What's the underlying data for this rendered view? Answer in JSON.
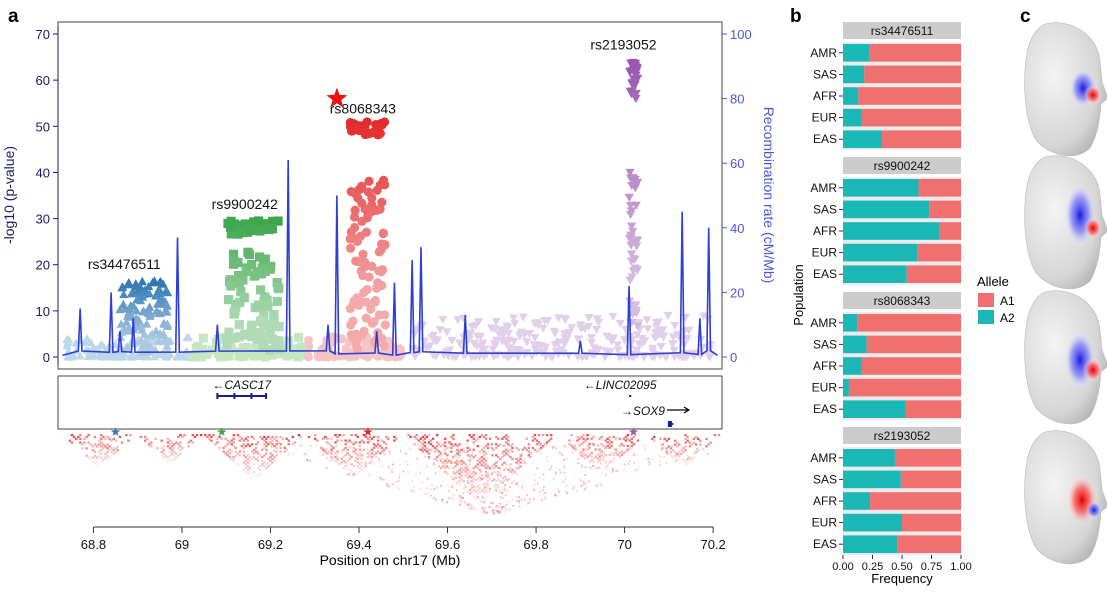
{
  "panels": {
    "a": "a",
    "b": "b",
    "c": "c"
  },
  "colors": {
    "axis": "#1a1a66",
    "recomb": "#2d3fd6",
    "recomb_axis": "#4a55e0",
    "a1": "#f07070",
    "a2": "#1bb6b6",
    "strip": "#cccccc",
    "ld": "#e83030",
    "star": "#ee1111"
  },
  "chart_data": [
    {
      "type": "scatter",
      "title": "",
      "ylabel": "-log10 (p-value)",
      "y2label": "Recombination rate (cM/Mb)",
      "xlabel": "Position on chr17 (Mb)",
      "xlim": [
        68.72,
        70.22
      ],
      "ylim": [
        0,
        70
      ],
      "y2lim": [
        0,
        100
      ],
      "xticks": [
        "68.8",
        "69",
        "69.2",
        "69.4",
        "69.6",
        "69.8",
        "70",
        "70.2"
      ],
      "yticks": [
        "0",
        "10",
        "20",
        "30",
        "40",
        "50",
        "60",
        "70"
      ],
      "y2ticks": [
        "0",
        "20",
        "40",
        "60",
        "80",
        "100"
      ],
      "series": [
        {
          "name": "rs34476511",
          "color": "#2f78b4",
          "marker": "triangle",
          "xrange": [
            68.86,
            68.97
          ],
          "peak": 16.5,
          "lead": {
            "x": 68.88,
            "y": 17.2
          }
        },
        {
          "name": "rs9900242",
          "color": "#3ca64a",
          "marker": "square",
          "xrange": [
            69.1,
            69.22
          ],
          "peak": 29.5,
          "lead": {
            "x": 69.13,
            "y": 30.2
          }
        },
        {
          "name": "rs8068343",
          "color": "#e32b2b",
          "marker": "circle",
          "xrange": [
            69.38,
            69.46
          ],
          "peak": 51.0,
          "lead": {
            "x": 69.35,
            "y": 56.0
          }
        },
        {
          "name": "rs2193052",
          "color": "#9a56b0",
          "marker": "triangle-down",
          "xrange": [
            70.01,
            70.03
          ],
          "peak": 64.0,
          "lead": {
            "x": 70.02,
            "y": 64.0
          }
        }
      ],
      "recombination_peaks": [
        {
          "x": 68.77,
          "y": 15
        },
        {
          "x": 68.84,
          "y": 20
        },
        {
          "x": 68.86,
          "y": 8
        },
        {
          "x": 68.89,
          "y": 12
        },
        {
          "x": 68.99,
          "y": 37
        },
        {
          "x": 69.08,
          "y": 10
        },
        {
          "x": 69.24,
          "y": 61
        },
        {
          "x": 69.33,
          "y": 10
        },
        {
          "x": 69.35,
          "y": 50
        },
        {
          "x": 69.44,
          "y": 8
        },
        {
          "x": 69.48,
          "y": 23
        },
        {
          "x": 69.52,
          "y": 30
        },
        {
          "x": 69.54,
          "y": 34
        },
        {
          "x": 69.64,
          "y": 13
        },
        {
          "x": 69.9,
          "y": 5
        },
        {
          "x": 70.01,
          "y": 22
        },
        {
          "x": 70.13,
          "y": 45
        },
        {
          "x": 70.17,
          "y": 12
        },
        {
          "x": 70.19,
          "y": 40
        }
      ],
      "genes": [
        {
          "name": "CASC17",
          "arrow": "←",
          "start": 69.08,
          "end": 69.19,
          "dir": "left",
          "row": 1
        },
        {
          "name": "LINC02095",
          "arrow": "←",
          "start": 70.01,
          "end": 70.015,
          "dir": "left",
          "row": 1
        },
        {
          "name": "SOX9",
          "arrow": "→",
          "start": 70.1,
          "end": 70.11,
          "dir": "right",
          "row": 2
        }
      ],
      "ld_stars": [
        {
          "x": 68.85,
          "color": "#2f78b4"
        },
        {
          "x": 69.09,
          "color": "#3ca64a"
        },
        {
          "x": 69.42,
          "color": "#e32b2b"
        },
        {
          "x": 70.02,
          "color": "#9a56b0"
        }
      ]
    },
    {
      "type": "bar",
      "stacked": true,
      "orientation": "horizontal",
      "xlabel": "Frequency",
      "ylabel": "Population",
      "xlim": [
        0,
        1
      ],
      "xticks": [
        "0.00",
        "0.25",
        "0.50",
        "0.75",
        "1.00"
      ],
      "legend": {
        "title": "Allele",
        "entries": [
          "A1",
          "A2"
        ],
        "position": "right"
      },
      "categories": [
        "AMR",
        "SAS",
        "AFR",
        "EUR",
        "EAS"
      ],
      "facets": [
        {
          "title": "rs34476511",
          "A2": [
            0.22,
            0.18,
            0.13,
            0.16,
            0.33
          ]
        },
        {
          "title": "rs9900242",
          "A2": [
            0.64,
            0.73,
            0.82,
            0.63,
            0.54
          ]
        },
        {
          "title": "rs8068343",
          "A2": [
            0.12,
            0.2,
            0.16,
            0.05,
            0.53
          ]
        },
        {
          "title": "rs2193052",
          "A2": [
            0.44,
            0.49,
            0.23,
            0.5,
            0.46
          ]
        }
      ]
    }
  ]
}
